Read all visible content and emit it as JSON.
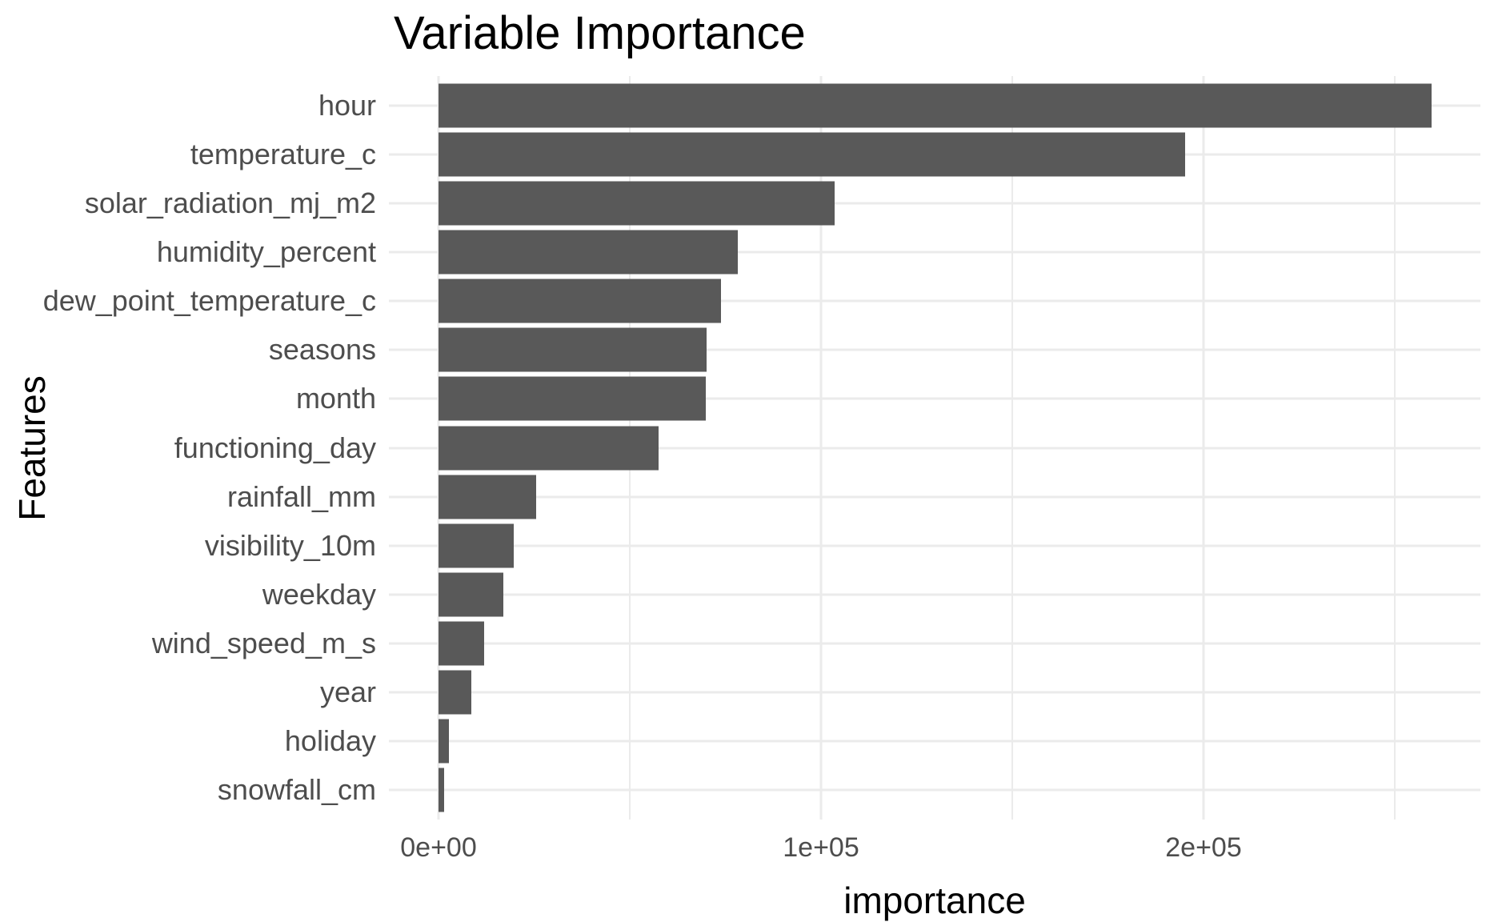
{
  "title": "Variable Importance",
  "axes": {
    "y_title": "Features",
    "x_title": "importance",
    "x_ticks": [
      {
        "label": "0e+00",
        "value": 0
      },
      {
        "label": "1e+05",
        "value": 100000
      },
      {
        "label": "2e+05",
        "value": 200000
      }
    ],
    "x_minor_ticks": [
      50000,
      150000,
      250000
    ]
  },
  "chart_data": {
    "type": "bar",
    "orientation": "horizontal",
    "title": "Variable Importance",
    "xlabel": "importance",
    "ylabel": "Features",
    "xlim": [
      -13000,
      272500
    ],
    "grid": true,
    "legend": false,
    "categories": [
      "hour",
      "temperature_c",
      "solar_radiation_mj_m2",
      "humidity_percent",
      "dew_point_temperature_c",
      "seasons",
      "month",
      "functioning_day",
      "rainfall_mm",
      "visibility_10m",
      "weekday",
      "wind_speed_m_s",
      "year",
      "holiday",
      "snowfall_cm"
    ],
    "values": [
      259600,
      195200,
      103600,
      78200,
      73800,
      70100,
      69900,
      57500,
      25500,
      19700,
      16900,
      11900,
      8600,
      2700,
      1500
    ]
  },
  "colors": {
    "bar": "#595959",
    "grid": "#ebebeb",
    "axis_text": "#4d4d4d",
    "title_text": "#000000",
    "background": "#ffffff"
  }
}
